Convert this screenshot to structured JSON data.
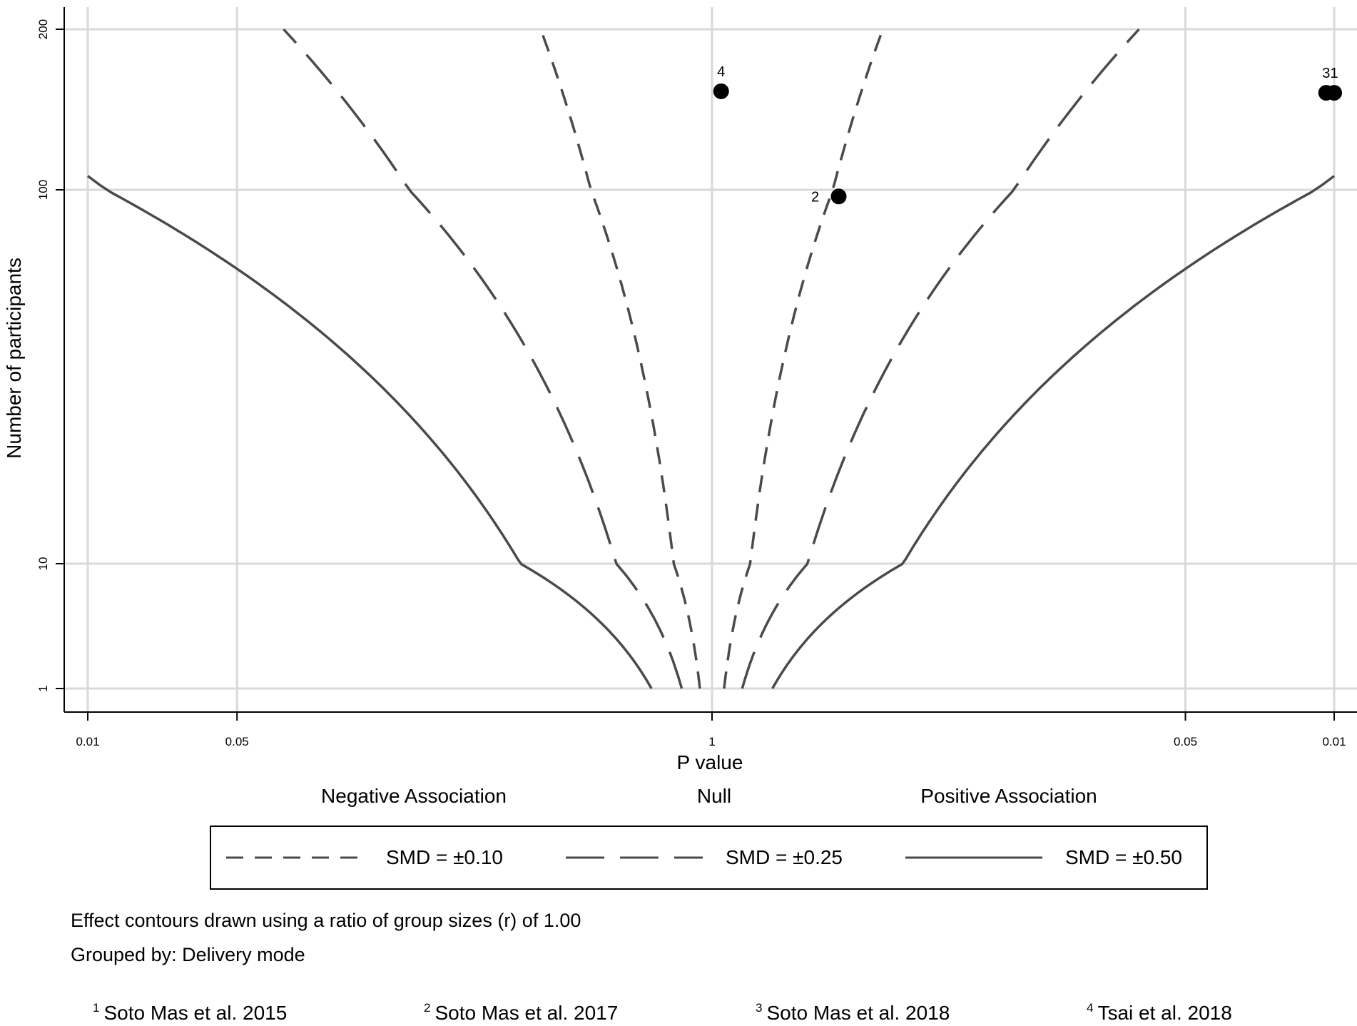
{
  "chart_data": {
    "type": "scatter",
    "title": "",
    "xlabel": "P value",
    "ylabel": "Number of participants",
    "x_tick_labels": [
      "0.01",
      "0.05",
      "1",
      "0.05",
      "0.01"
    ],
    "y_ticks": [
      1,
      10,
      100,
      200
    ],
    "y_scale": "log",
    "region_labels": [
      "Negative Association",
      "Null",
      "Positive Association"
    ],
    "contours": [
      {
        "name": "SMD = ±0.10",
        "smd": 0.1,
        "style": "short-dash"
      },
      {
        "name": "SMD = ±0.25",
        "smd": 0.25,
        "style": "long-dash"
      },
      {
        "name": "SMD = ±0.50",
        "smd": 0.5,
        "style": "solid"
      }
    ],
    "points": [
      {
        "label": "1",
        "direction": "positive",
        "p": 0.01,
        "n": 152
      },
      {
        "label": "2",
        "direction": "positive",
        "p": 0.6,
        "n": 96
      },
      {
        "label": "3",
        "direction": "positive",
        "p": 0.011,
        "n": 152
      },
      {
        "label": "4",
        "direction": "positive",
        "p": 0.97,
        "n": 153
      }
    ],
    "grid": true,
    "legend_position": "bottom"
  },
  "notes": {
    "ratio": "Effect contours drawn using a ratio of group sizes (r) of 1.00",
    "grouped": "Grouped by: Delivery mode"
  },
  "studies": [
    {
      "num": "1",
      "name": "Soto Mas et al. 2015"
    },
    {
      "num": "2",
      "name": "Soto Mas et al. 2017"
    },
    {
      "num": "3",
      "name": "Soto Mas et al. 2018"
    },
    {
      "num": "4",
      "name": "Tsai et al. 2018"
    }
  ],
  "colors": {
    "grid": "#d9d9d9",
    "contour": "#4a4a4a",
    "point": "#000000"
  }
}
